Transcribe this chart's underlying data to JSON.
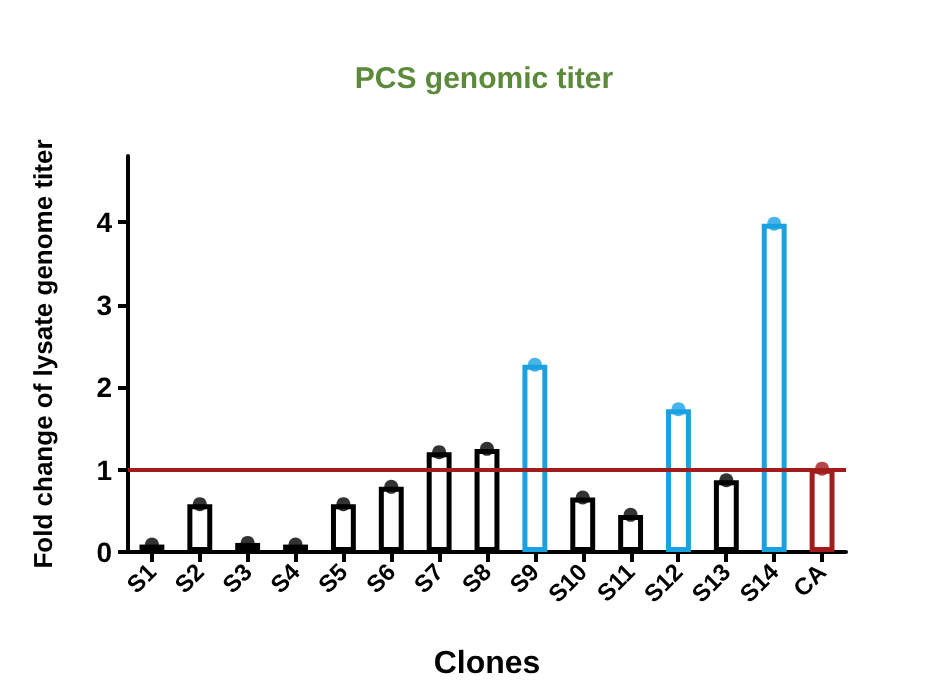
{
  "chart_data": {
    "type": "bar",
    "title": "PCS genomic titer",
    "xlabel": "Clones",
    "ylabel": "Fold change of lysate genome titer",
    "categories": [
      "S1",
      "S2",
      "S3",
      "S4",
      "S5",
      "S6",
      "S7",
      "S8",
      "S9",
      "S10",
      "S11",
      "S12",
      "S13",
      "S14",
      "CA"
    ],
    "series": [
      {
        "values": [
          0.09,
          0.58,
          0.11,
          0.09,
          0.58,
          0.79,
          1.21,
          1.25,
          2.27,
          0.66,
          0.45,
          1.73,
          0.87,
          3.98,
          1.01
        ],
        "colors": [
          "#000000",
          "#000000",
          "#000000",
          "#000000",
          "#000000",
          "#000000",
          "#000000",
          "#000000",
          "#1ba1e2",
          "#000000",
          "#000000",
          "#1ba1e2",
          "#000000",
          "#1ba1e2",
          "#a31c1c"
        ]
      },
      {
        "type": "scatter",
        "x": [
          "S1",
          "S2",
          "S3",
          "S4",
          "S5",
          "S6",
          "S7",
          "S8",
          "S9",
          "S10",
          "S11",
          "S12",
          "S13",
          "S14",
          "CA"
        ],
        "values": [
          0.09,
          0.58,
          0.11,
          0.09,
          0.58,
          0.79,
          1.21,
          1.25,
          2.27,
          0.66,
          0.45,
          1.73,
          0.87,
          3.98,
          1.01
        ],
        "colors": [
          "#000000",
          "#000000",
          "#000000",
          "#000000",
          "#000000",
          "#000000",
          "#000000",
          "#000000",
          "#1ba1e2",
          "#000000",
          "#000000",
          "#1ba1e2",
          "#000000",
          "#1ba1e2",
          "#a31c1c"
        ]
      }
    ],
    "ylim": [
      0,
      4.8
    ],
    "yticks": [
      0,
      1,
      2,
      3,
      4
    ],
    "grid": false,
    "marker": "circle",
    "ref_lines": [
      {
        "axis": "y",
        "value": 1,
        "color": "#a31c1c"
      }
    ]
  }
}
